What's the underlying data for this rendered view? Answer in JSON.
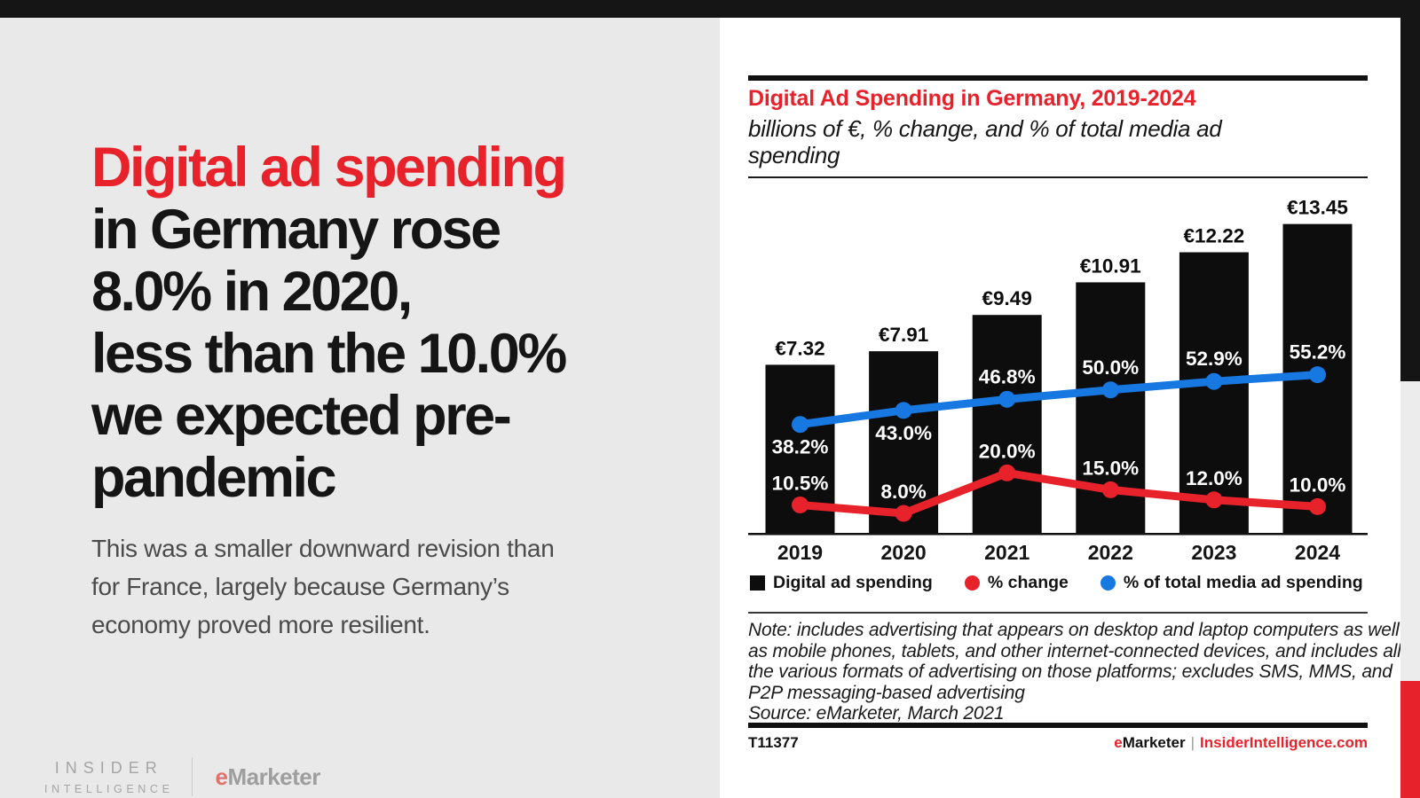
{
  "colors": {
    "accent_red": "#e8222a",
    "line_blue": "#1778e2",
    "bar_black": "#0d0d0d",
    "left_bg_gray": "#e9e9e9",
    "paragraph_gray": "#4b4b4b",
    "logo_gray": "#a5a5a5",
    "logo_e_red": "#e0736e"
  },
  "left_panel": {
    "headline": {
      "lines": [
        {
          "text": "Digital ad spending",
          "accent": true
        },
        {
          "text": "in Germany rose",
          "accent": false
        },
        {
          "text": "8.0% in 2020,",
          "accent": false
        },
        {
          "text": "less than the 10.0%",
          "accent": false
        },
        {
          "text": "we expected pre-",
          "accent": false
        },
        {
          "text": "pandemic",
          "accent": false
        }
      ]
    },
    "paragraph_lines": [
      "This was a smaller downward revision than",
      "for France, largely because Germany’s",
      "economy proved more resilient."
    ],
    "logo": {
      "insider_line1": "INSIDER",
      "insider_line2": "INTELLIGENCE",
      "emarketer_e": "e",
      "emarketer_rest": "Marketer"
    }
  },
  "card": {
    "title": "Digital Ad Spending in Germany, 2019-2024",
    "subtitle_lines": [
      "billions of €, % change, and % of total media ad",
      "spending"
    ],
    "legend": [
      {
        "label": "Digital ad spending",
        "swatch": "square",
        "color": "#0d0d0d"
      },
      {
        "label": "% change",
        "swatch": "dot",
        "color": "#e8222a"
      },
      {
        "label": "% of total media ad spending",
        "swatch": "dot",
        "color": "#1778e2"
      }
    ],
    "note_lines": [
      "Note: includes advertising that appears on desktop and laptop computers as well",
      "as mobile phones, tablets, and other internet-connected devices, and includes all",
      "the various formats of advertising on those platforms; excludes SMS, MMS, and",
      "P2P messaging-based advertising"
    ],
    "source_line": "Source: eMarketer, March 2021",
    "footer": {
      "id": "T11377",
      "brand_e": "e",
      "brand_rest": "Marketer",
      "separator": "|",
      "site": "InsiderIntelligence.com"
    }
  },
  "chart_data": {
    "type": "bar",
    "title": "Digital Ad Spending in Germany, 2019-2024",
    "subtitle": "billions of €, % change, and % of total media ad spending",
    "categories": [
      "2019",
      "2020",
      "2021",
      "2022",
      "2023",
      "2024"
    ],
    "grid": false,
    "legend_position": "bottom",
    "series": [
      {
        "name": "Digital ad spending",
        "type": "bar",
        "unit": "billions of €",
        "values": [
          7.32,
          7.91,
          9.49,
          10.91,
          12.22,
          13.45
        ],
        "labels": [
          "€7.32",
          "€7.91",
          "€9.49",
          "€10.91",
          "€12.22",
          "€13.45"
        ],
        "color": "#0d0d0d",
        "ylim": [
          0,
          14.9
        ]
      },
      {
        "name": "% change",
        "type": "line",
        "unit": "%",
        "values": [
          10.5,
          8.0,
          20.0,
          15.0,
          12.0,
          10.0
        ],
        "labels": [
          "10.5%",
          "8.0%",
          "20.0%",
          "15.0%",
          "12.0%",
          "10.0%"
        ],
        "label_position": [
          "above",
          "above",
          "above",
          "above",
          "above",
          "above"
        ],
        "color": "#e8222a"
      },
      {
        "name": "% of total media ad spending",
        "type": "line",
        "unit": "%",
        "values": [
          38.2,
          43.0,
          46.8,
          50.0,
          52.9,
          55.2
        ],
        "labels": [
          "38.2%",
          "43.0%",
          "46.8%",
          "50.0%",
          "52.9%",
          "55.2%"
        ],
        "label_position": [
          "below",
          "below",
          "above",
          "above",
          "above",
          "above"
        ],
        "color": "#1778e2"
      }
    ]
  }
}
